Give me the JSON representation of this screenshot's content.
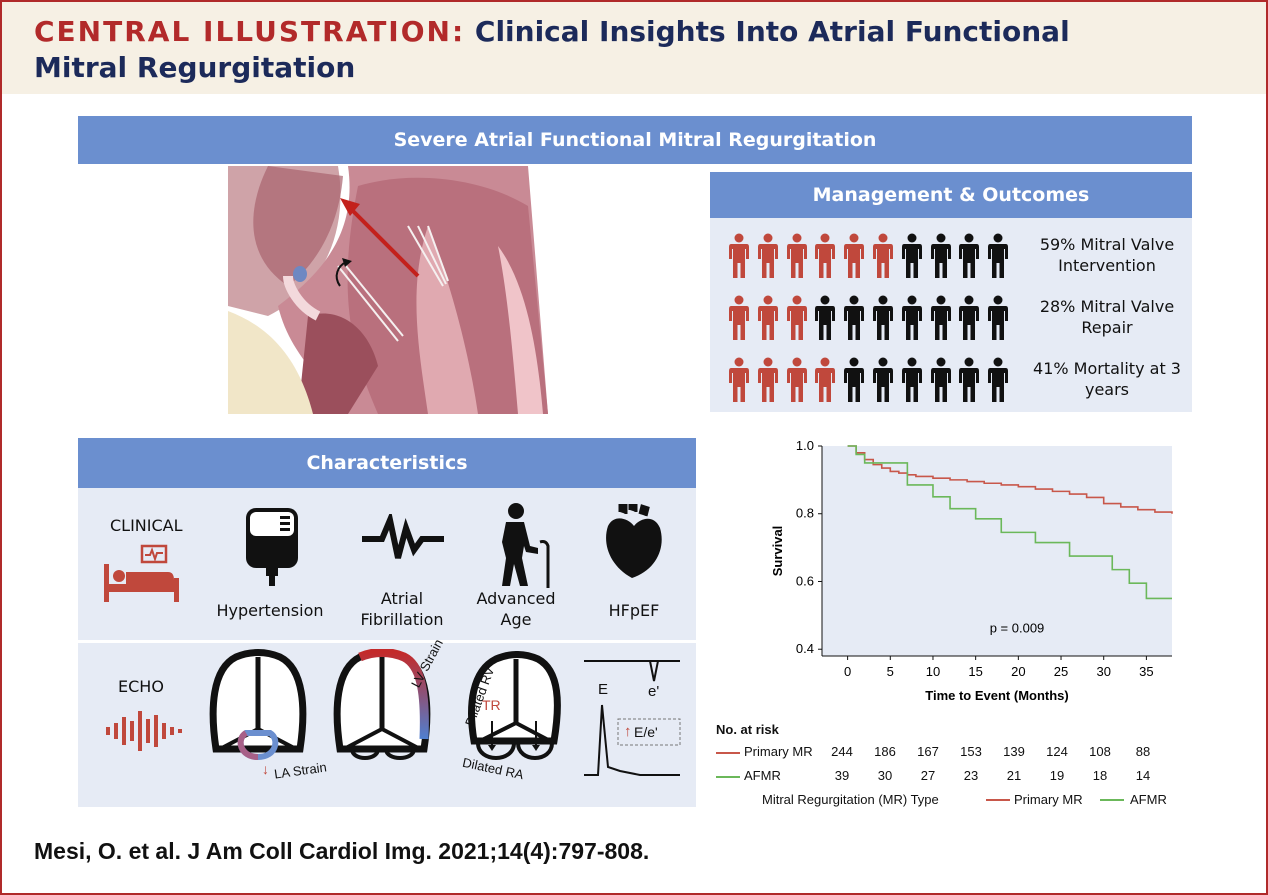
{
  "header": {
    "lead": "CENTRAL ILLUSTRATION:",
    "title": "Clinical Insights Into Atrial Functional Mitral Regurgitation"
  },
  "top_banner": "Severe Atrial Functional Mitral Regurgitation",
  "management": {
    "title": "Management & Outcomes",
    "rows": [
      {
        "label": "59% Mitral Valve Intervention",
        "red": 6,
        "total": 10
      },
      {
        "label": "28% Mitral Valve Repair",
        "red": 3,
        "total": 10
      },
      {
        "label": "41% Mortality at 3 years",
        "red": 4,
        "total": 10
      }
    ]
  },
  "characteristics": {
    "title": "Characteristics",
    "clinical_label": "CLINICAL",
    "clinical_items": [
      {
        "icon": "iv-bag-icon",
        "label": "Hypertension"
      },
      {
        "icon": "ecg-wave-icon",
        "label": "Atrial Fibrillation"
      },
      {
        "icon": "elderly-person-icon",
        "label": "Advanced Age"
      },
      {
        "icon": "heart-icon",
        "label": "HFpEF"
      }
    ],
    "echo_label": "ECHO",
    "echo_items": {
      "la_strain": "LA Strain",
      "lv_strain": "LV Strain",
      "dilated_rv": "Dilated RV",
      "tr": "TR",
      "dilated_ra": "Dilated RA",
      "e_label": "E",
      "e_prime": "e'",
      "e_ratio": "E/e'"
    }
  },
  "km": {
    "ylabel": "Survival",
    "xlabel": "Time to Event (Months)",
    "p_value": "p = 0.009",
    "y_ticks": [
      "1.0",
      "0.8",
      "0.6",
      "0.4"
    ],
    "x_ticks": [
      "0",
      "5",
      "10",
      "15",
      "20",
      "25",
      "30",
      "35"
    ],
    "at_risk_title": "No. at risk",
    "at_risk": [
      {
        "name": "Primary MR",
        "color": "#c8574a",
        "values": [
          "244",
          "186",
          "167",
          "153",
          "139",
          "124",
          "108",
          "88"
        ]
      },
      {
        "name": "AFMR",
        "color": "#6bb85a",
        "values": [
          "39",
          "30",
          "27",
          "23",
          "21",
          "19",
          "18",
          "14"
        ]
      }
    ],
    "legend_title": "Mitral Regurgitation (MR) Type",
    "legend": [
      {
        "name": "Primary MR",
        "color": "#c8574a"
      },
      {
        "name": "AFMR",
        "color": "#6bb85a"
      }
    ]
  },
  "chart_data": {
    "type": "line",
    "xlabel": "Time to Event (Months)",
    "ylabel": "Survival",
    "xlim": [
      -3,
      38
    ],
    "ylim": [
      0.38,
      1.0
    ],
    "series": [
      {
        "name": "Primary MR",
        "x": [
          0,
          1,
          2,
          3,
          4,
          5,
          6,
          7,
          8,
          10,
          12,
          14,
          16,
          18,
          20,
          22,
          24,
          26,
          28,
          30,
          32,
          34,
          36,
          38
        ],
        "values": [
          1.0,
          0.98,
          0.96,
          0.945,
          0.935,
          0.925,
          0.92,
          0.915,
          0.91,
          0.905,
          0.9,
          0.895,
          0.89,
          0.885,
          0.88,
          0.873,
          0.866,
          0.858,
          0.848,
          0.83,
          0.82,
          0.812,
          0.805,
          0.8
        ]
      },
      {
        "name": "AFMR",
        "x": [
          0,
          1,
          2,
          4,
          7,
          10,
          12,
          15,
          18,
          22,
          26,
          31,
          33,
          35,
          38
        ],
        "values": [
          1.0,
          0.975,
          0.95,
          0.95,
          0.885,
          0.85,
          0.815,
          0.785,
          0.745,
          0.715,
          0.675,
          0.635,
          0.595,
          0.55,
          0.55
        ]
      }
    ]
  },
  "citation": "Mesi, O. et al. J Am Coll Cardiol Img. 2021;14(4):797-808.",
  "colors": {
    "accent_red": "#b22a2a",
    "banner_blue": "#6b8fcf",
    "panel_bg": "#e6ebf5",
    "title_navy": "#1c2a5a",
    "icon_red": "#c0483c"
  }
}
